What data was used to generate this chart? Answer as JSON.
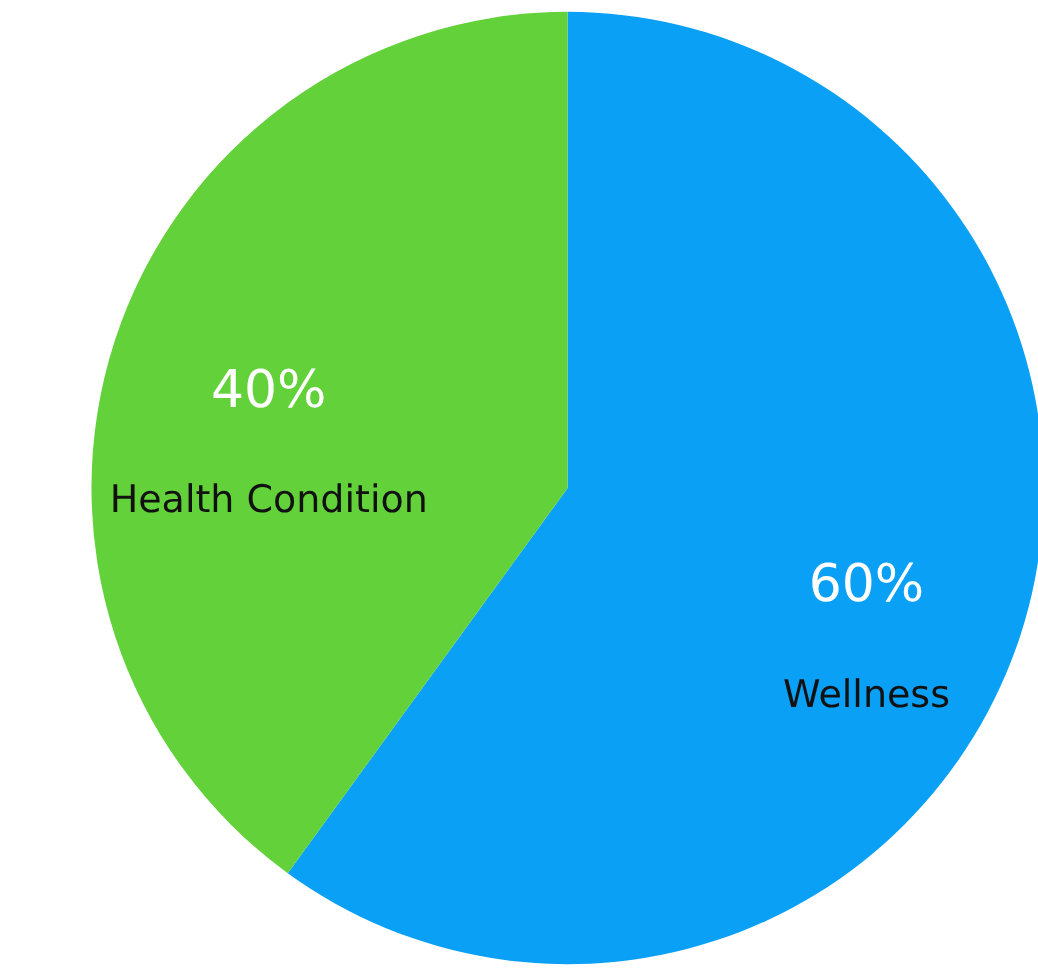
{
  "chart_data": {
    "type": "pie",
    "categories": [
      "Wellness",
      "Health Condition"
    ],
    "values": [
      60,
      40
    ],
    "colors": [
      "#0aa0f5",
      "#62d13a"
    ],
    "value_labels": [
      "60%",
      "40%"
    ]
  }
}
